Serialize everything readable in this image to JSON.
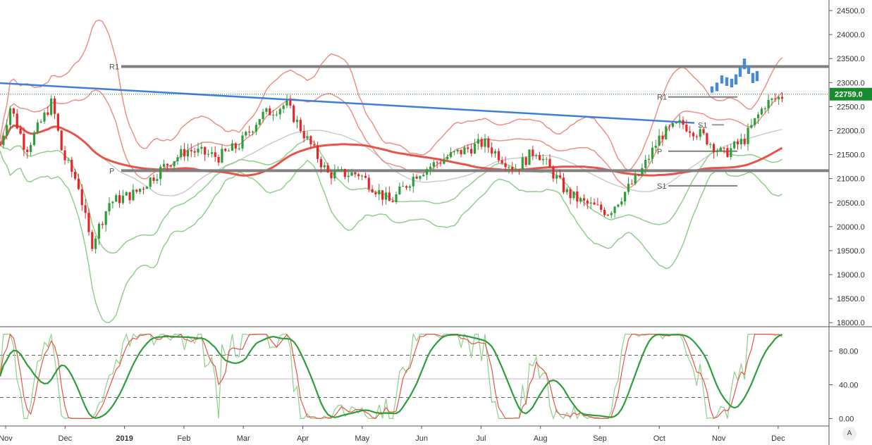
{
  "chart_data": {
    "type": "candlestick",
    "price_axis": {
      "ticks": [
        "24500.0",
        "24000.0",
        "23500.0",
        "23000.0",
        "22500.0",
        "22000.0",
        "21500.0",
        "21000.0",
        "20500.0",
        "20000.0",
        "19500.0",
        "19000.0",
        "18500.0",
        "18000.0"
      ],
      "range": [
        17930,
        24720
      ]
    },
    "current_price": {
      "label": "22759.0",
      "value": 22759,
      "color": "#178c2e"
    },
    "time_axis": {
      "labels": [
        "Nov",
        "Dec",
        "2019",
        "Feb",
        "Mar",
        "Apr",
        "May",
        "Jun",
        "Jul",
        "Aug",
        "Sep",
        "Oct",
        "Nov",
        "Dec"
      ],
      "bold": [
        "2019"
      ]
    },
    "pivot_levels": [
      {
        "label": "R1",
        "value": 23335,
        "from_index": 0,
        "to_index": 1
      },
      {
        "label": "P",
        "value": 21165,
        "from_index": 0,
        "to_index": 1
      },
      {
        "label": "R1",
        "value": 22700
      },
      {
        "label": "P",
        "value": 21570
      },
      {
        "label": "S1",
        "value": 20850
      },
      {
        "label": "S1",
        "value": 22120
      }
    ],
    "trendline": {
      "start": 22990,
      "end": 22160,
      "color": "#3f7fdc"
    },
    "oscillator": {
      "ticks": [
        "80.00",
        "40.00",
        "0.00"
      ],
      "range": [
        -8,
        108
      ],
      "upper_band": 75,
      "lower_band": 25,
      "mid_line": 47
    },
    "colors": {
      "up": "#2e9e3a",
      "down": "#e8262a",
      "band_upper": "#f08f85",
      "band_lower": "#8fd08a",
      "ma_red": "#e8544a",
      "ma_green": "#55b055",
      "ma_grey": "#cccccc",
      "projection": "#4a8ad0"
    },
    "grid": false
  },
  "ui": {
    "auto_scale_label": "A"
  }
}
